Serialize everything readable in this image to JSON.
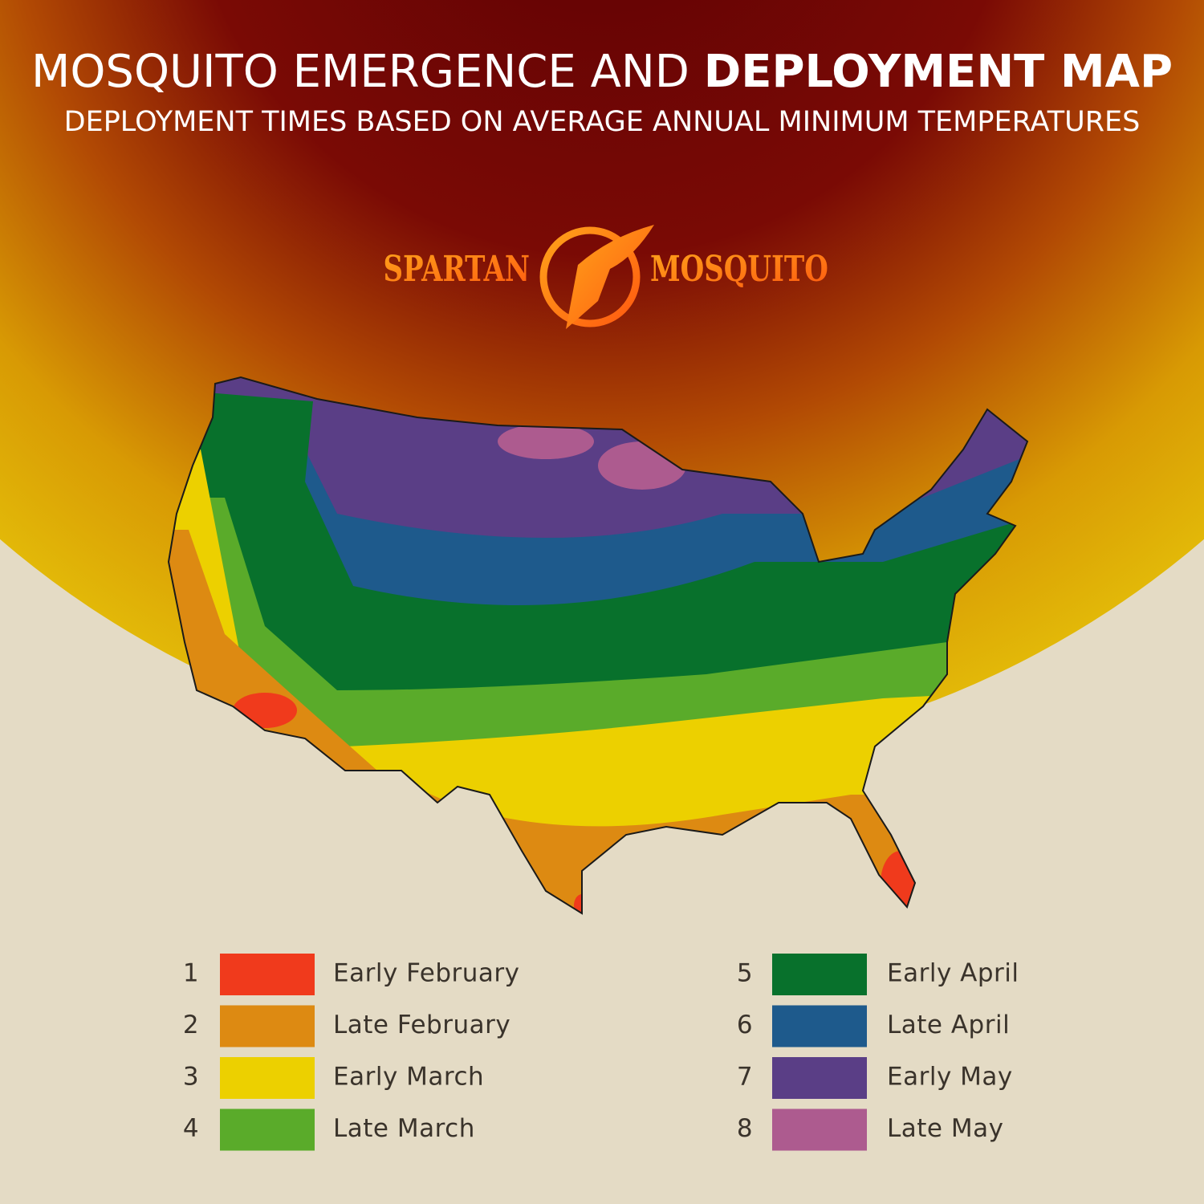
{
  "header": {
    "title": "MOSQUITO EMERGENCE AND",
    "title_bold": "DEPLOYMENT MAP",
    "subtitle": "DEPLOYMENT TIMES BASED ON AVERAGE ANNUAL MINIMUM TEMPERATURES"
  },
  "logo": {
    "left": "SPARTAN",
    "right": "MOSQUITO"
  },
  "legend": {
    "items": [
      {
        "number": "1",
        "label": "Early February",
        "color": "#f03a1c"
      },
      {
        "number": "2",
        "label": "Late February",
        "color": "#dd8a12"
      },
      {
        "number": "3",
        "label": "Early March",
        "color": "#ecd000"
      },
      {
        "number": "4",
        "label": "Late March",
        "color": "#5aab2a"
      },
      {
        "number": "5",
        "label": "Early April",
        "color": "#08712c"
      },
      {
        "number": "6",
        "label": "Late April",
        "color": "#1e5a8c"
      },
      {
        "number": "7",
        "label": "Early May",
        "color": "#5a3e86"
      },
      {
        "number": "8",
        "label": "Late May",
        "color": "#ad5b8f"
      }
    ]
  }
}
